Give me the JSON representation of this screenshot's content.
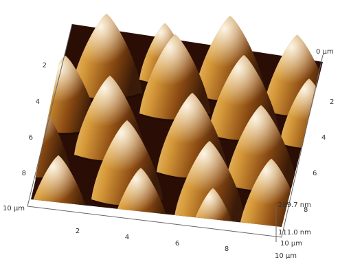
{
  "axes": {
    "left": [
      "2",
      "4",
      "6",
      "8",
      "10 µm"
    ],
    "bottom": [
      "2",
      "4",
      "6",
      "8",
      "10 µm"
    ],
    "right": [
      "0 µm",
      "2",
      "4",
      "6",
      "8",
      "10 µm"
    ]
  },
  "z_scale": {
    "top": "289.7 nm",
    "bottom": "111.0 nm"
  }
}
